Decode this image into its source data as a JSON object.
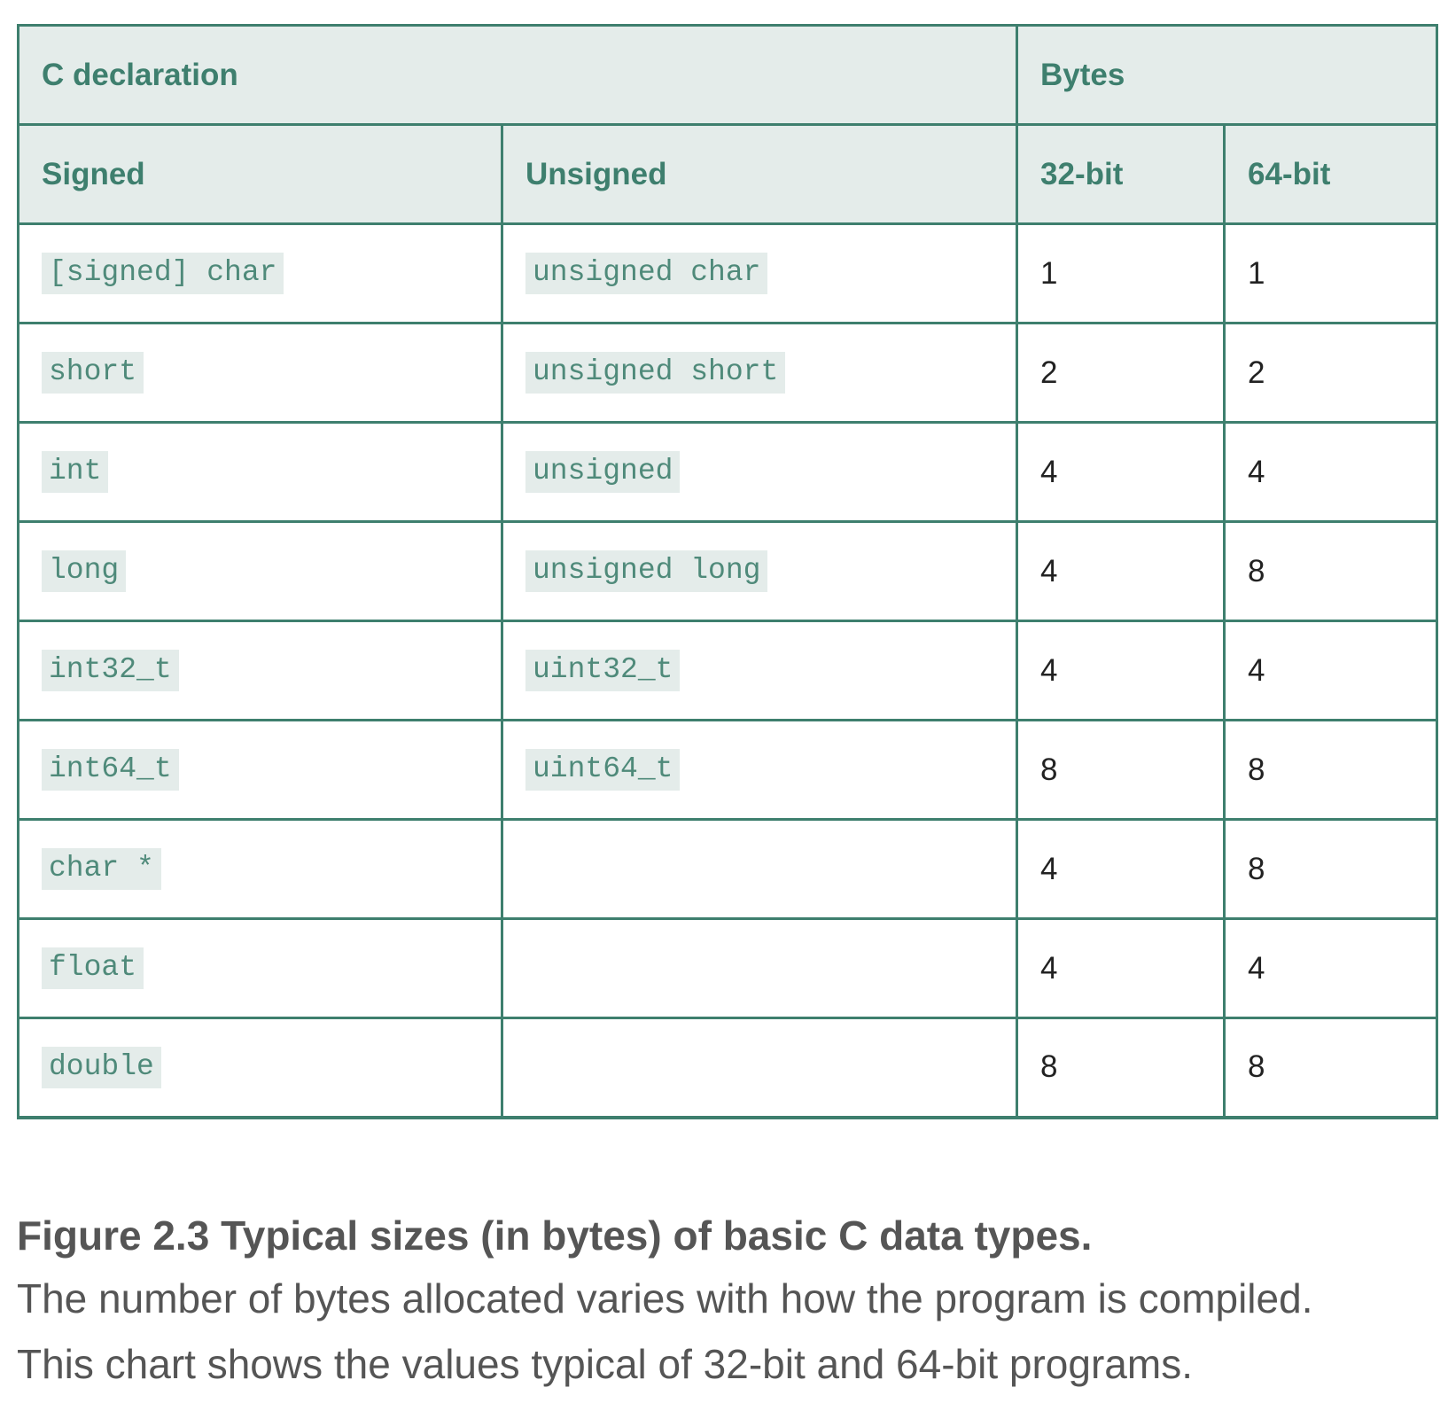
{
  "table": {
    "group_headers": {
      "declaration": "C declaration",
      "bytes": "Bytes"
    },
    "column_headers": {
      "signed": "Signed",
      "unsigned": "Unsigned",
      "bits32": "32-bit",
      "bits64": "64-bit"
    },
    "rows": [
      {
        "signed": "[signed] char",
        "unsigned": "unsigned char",
        "b32": "1",
        "b64": "1"
      },
      {
        "signed": "short",
        "unsigned": "unsigned short",
        "b32": "2",
        "b64": "2"
      },
      {
        "signed": "int",
        "unsigned": "unsigned",
        "b32": "4",
        "b64": "4"
      },
      {
        "signed": "long",
        "unsigned": "unsigned long",
        "b32": "4",
        "b64": "8"
      },
      {
        "signed": "int32_t",
        "unsigned": "uint32_t",
        "b32": "4",
        "b64": "4"
      },
      {
        "signed": "int64_t",
        "unsigned": "uint64_t",
        "b32": "8",
        "b64": "8"
      },
      {
        "signed": "char *",
        "unsigned": "",
        "b32": "4",
        "b64": "8"
      },
      {
        "signed": "float",
        "unsigned": "",
        "b32": "4",
        "b64": "4"
      },
      {
        "signed": "double",
        "unsigned": "",
        "b32": "8",
        "b64": "8"
      }
    ]
  },
  "caption": {
    "title": "Figure 2.3 Typical sizes (in bytes) of basic C data types.",
    "line1": "The number of bytes allocated varies with how the program is compiled.",
    "line2": "This chart shows the values typical of 32-bit and 64-bit programs."
  },
  "colors": {
    "border": "#3e7f6e",
    "header_bg": "#e4ecea",
    "header_text": "#3e7f6e",
    "code_bg": "#e4ecea",
    "code_text": "#4f8a7a",
    "caption_text": "#555555"
  }
}
